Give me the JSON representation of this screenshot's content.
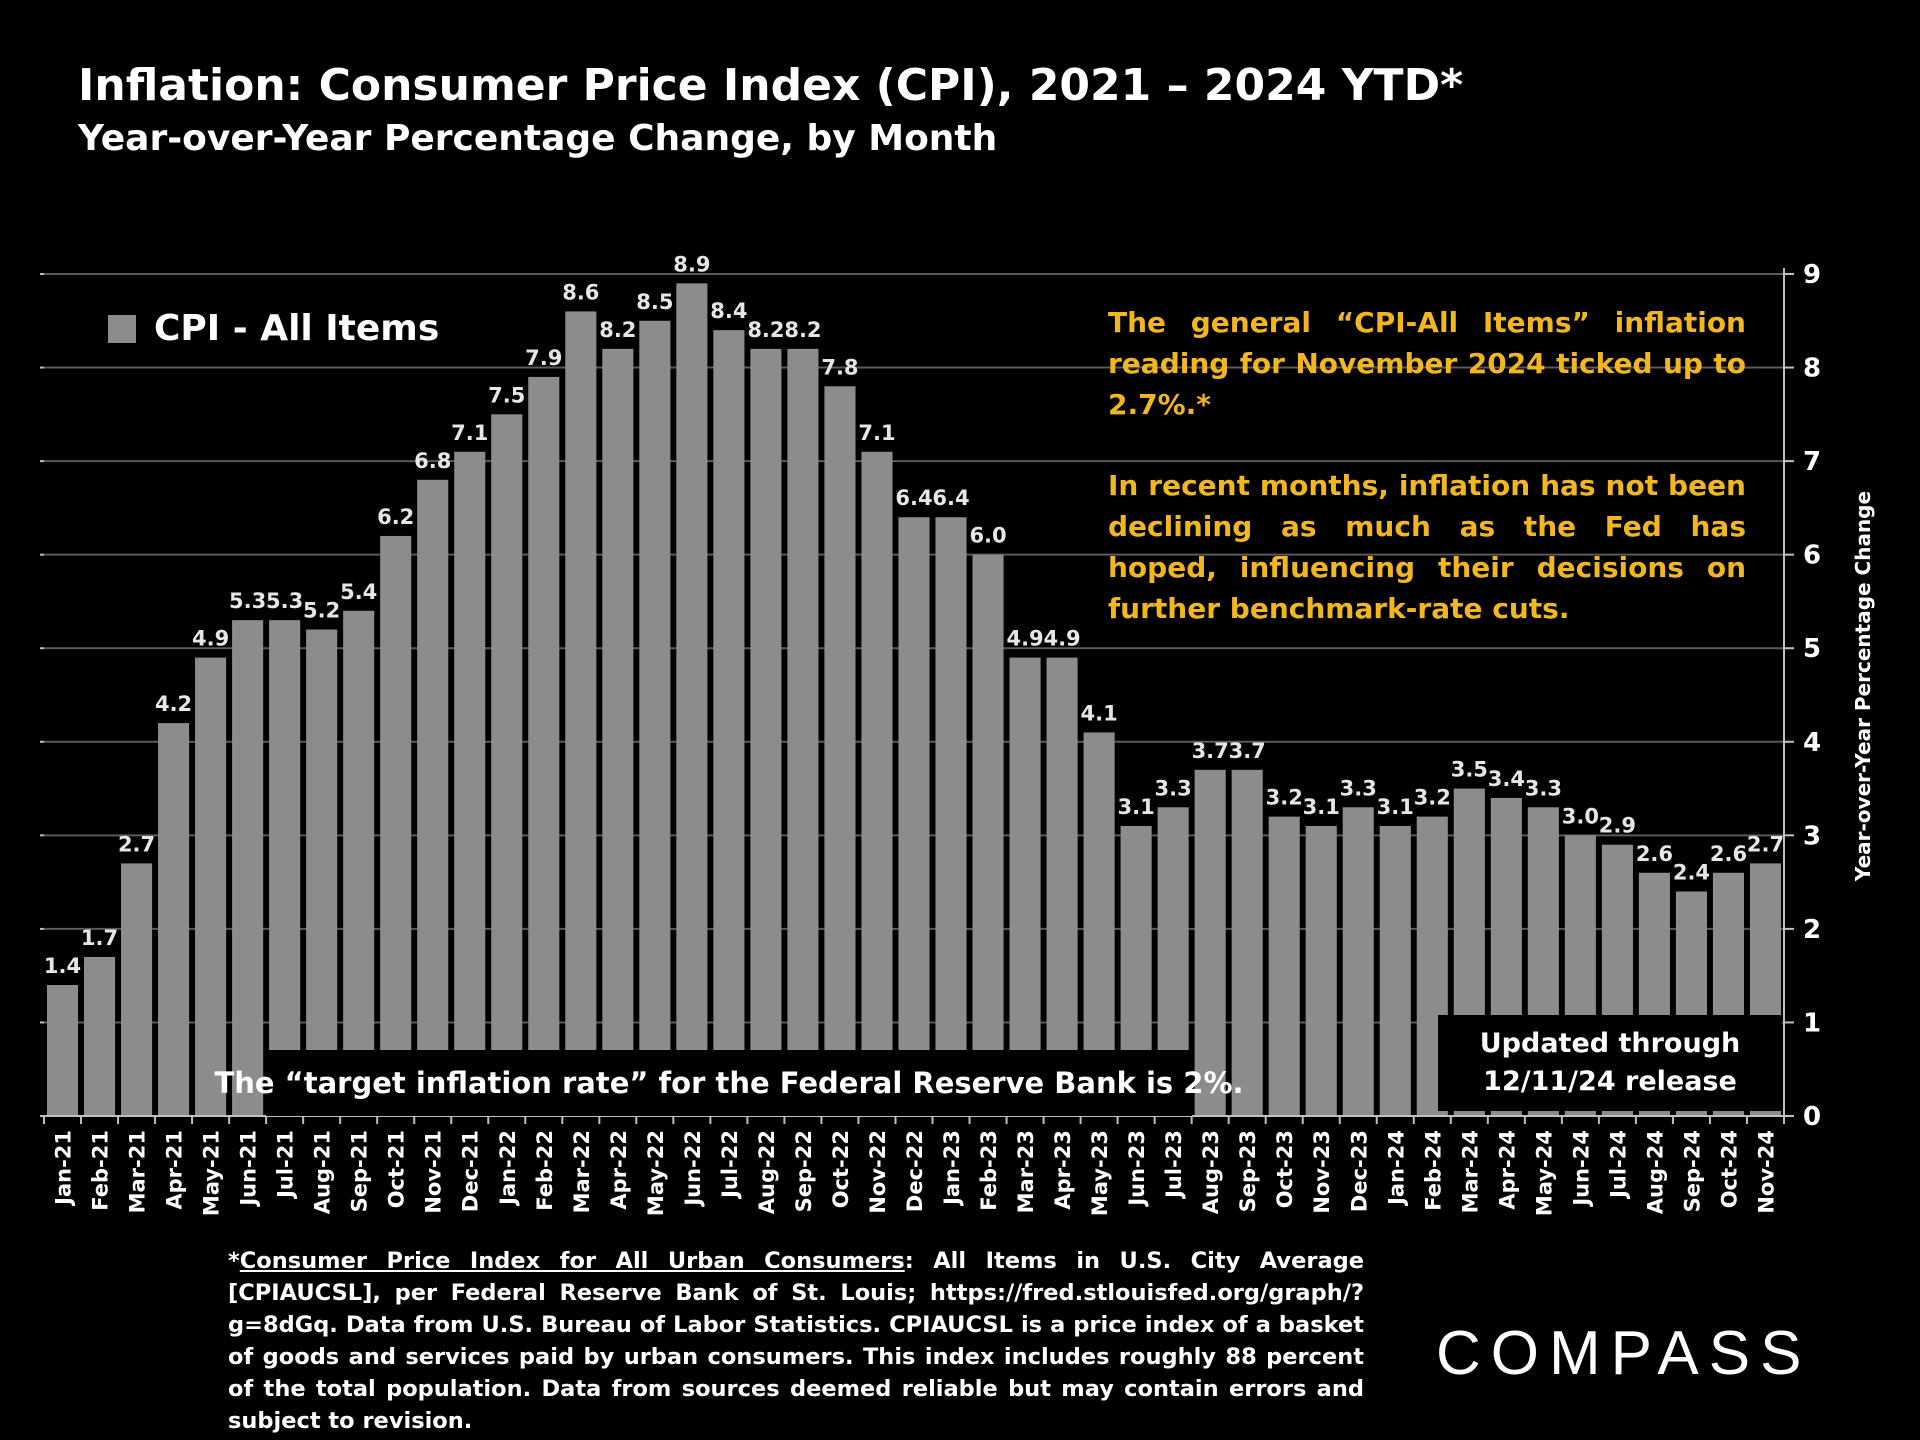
{
  "title": "Inflation: Consumer Price Index (CPI), 2021 – 2024 YTD*",
  "subtitle": "Year-over-Year Percentage Change, by Month",
  "legend": {
    "label": "CPI - All Items",
    "color": "#8c8c8c"
  },
  "note": {
    "p1": "The general “CPI-All Items” inflation reading for November 2024 ticked up to 2.7%.*",
    "p2": "In recent months, inflation has not been declining as much as the Fed has hoped, influencing their decisions on further benchmark-rate cuts."
  },
  "target_note": "The “target inflation rate” for the Federal Reserve Bank is 2%.",
  "updated": {
    "line1": "Updated through",
    "line2": "12/11/24 release"
  },
  "footnote": {
    "prefix": "*",
    "link_text": "Consumer Price Index for All Urban Consumers",
    "text": ": All Items in U.S. City Average [CPIAUCSL], per Federal Reserve Bank of St. Louis; https://fred.stlouisfed.org/graph/?g=8dGq. Data from U.S. Bureau of Labor Statistics. CPIAUCSL is a price index of a basket of goods and services paid by urban consumers. This index includes roughly 88 percent of the total population. Data from sources deemed reliable but may contain errors and subject to revision."
  },
  "logo": "COMPASS",
  "chart_data": {
    "type": "bar",
    "ylabel": "Year-over-Year Percentage Change",
    "ylim": [
      0,
      9
    ],
    "yticks": [
      0,
      1,
      2,
      3,
      4,
      5,
      6,
      7,
      8,
      9
    ],
    "y_axis_side": "right",
    "grid": true,
    "legend_position": "top-left",
    "bar_color": "#8c8c8c",
    "categories": [
      "Jan-21",
      "Feb-21",
      "Mar-21",
      "Apr-21",
      "May-21",
      "Jun-21",
      "Jul-21",
      "Aug-21",
      "Sep-21",
      "Oct-21",
      "Nov-21",
      "Dec-21",
      "Jan-22",
      "Feb-22",
      "Mar-22",
      "Apr-22",
      "May-22",
      "Jun-22",
      "Jul-22",
      "Aug-22",
      "Sep-22",
      "Oct-22",
      "Nov-22",
      "Dec-22",
      "Jan-23",
      "Feb-23",
      "Mar-23",
      "Apr-23",
      "May-23",
      "Jun-23",
      "Jul-23",
      "Aug-23",
      "Sep-23",
      "Oct-23",
      "Nov-23",
      "Dec-23",
      "Jan-24",
      "Feb-24",
      "Mar-24",
      "Apr-24",
      "May-24",
      "Jun-24",
      "Jul-24",
      "Aug-24",
      "Sep-24",
      "Oct-24",
      "Nov-24"
    ],
    "series": [
      {
        "name": "CPI - All Items",
        "values": [
          1.4,
          1.7,
          2.7,
          4.2,
          4.9,
          5.3,
          5.3,
          5.2,
          5.4,
          6.2,
          6.8,
          7.1,
          7.5,
          7.9,
          8.6,
          8.2,
          8.5,
          8.9,
          8.4,
          8.2,
          8.2,
          7.8,
          7.1,
          6.4,
          6.4,
          6.0,
          4.9,
          4.9,
          4.1,
          3.1,
          3.3,
          3.7,
          3.7,
          3.2,
          3.1,
          3.3,
          3.1,
          3.2,
          3.5,
          3.4,
          3.3,
          3.0,
          2.9,
          2.6,
          2.4,
          2.6,
          2.7
        ],
        "labels": [
          "1.4",
          "1.7",
          "2.7",
          "4.2",
          "4.9",
          "5.3",
          "5.3",
          "5.2",
          "5.4",
          "6.2",
          "6.8",
          "7.1",
          "7.5",
          "7.9",
          "8.6",
          "8.2",
          "8.5",
          "8.9",
          "8.4",
          "8.2",
          "8.2",
          "7.8",
          "7.1",
          "6.4",
          "6.4",
          "6.0",
          "4.9",
          "4.9",
          "4.1",
          "3.1",
          "3.3",
          "3.7",
          "3.7",
          "3.2",
          "3.1",
          "3.3",
          "3.1",
          "3.2",
          "3.5",
          "3.4",
          "3.3",
          "3.0",
          "2.9",
          "2.6",
          "2.4",
          "2.6",
          "2.7"
        ]
      }
    ]
  }
}
